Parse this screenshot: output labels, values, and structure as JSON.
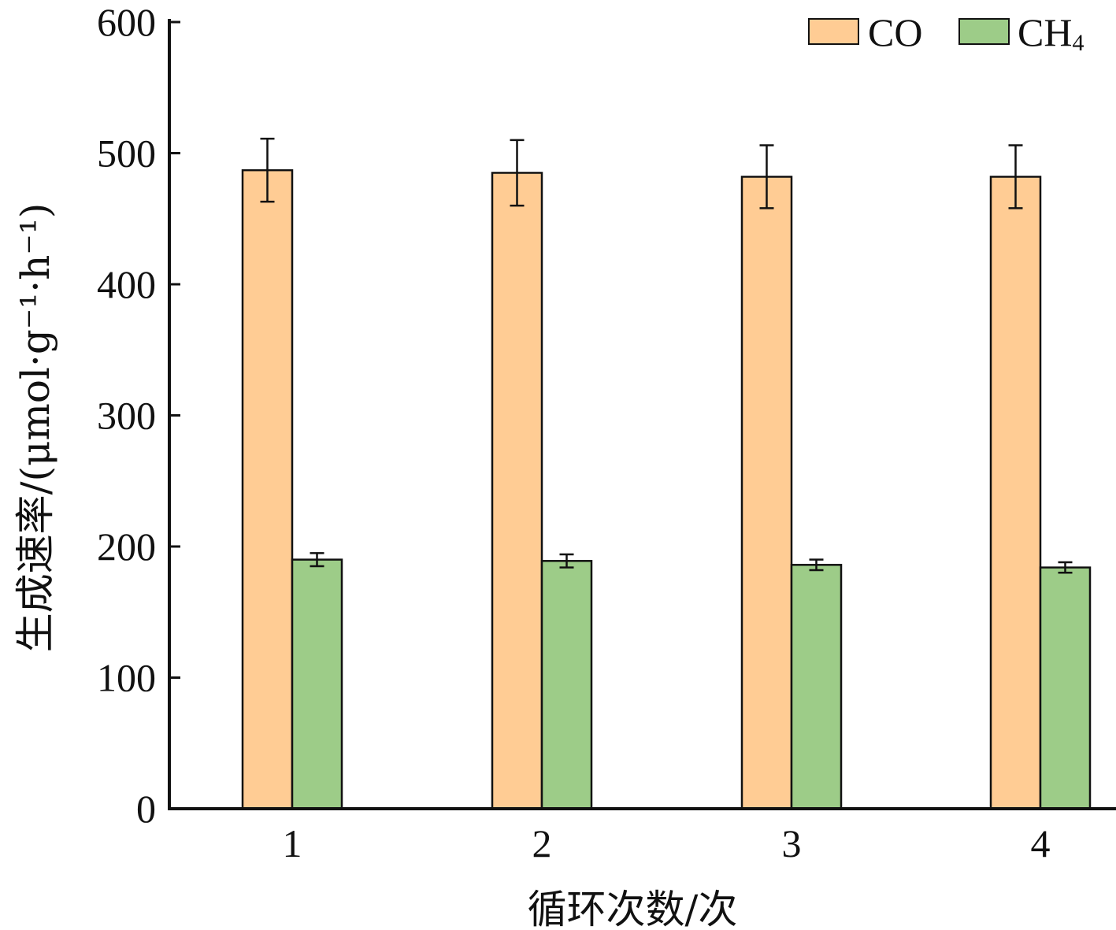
{
  "chart_data": {
    "type": "bar",
    "title": "",
    "xlabel": "循环次数/次",
    "ylabel": "生成速率/(μmol·g⁻¹·h⁻¹)",
    "categories": [
      "1",
      "2",
      "3",
      "4"
    ],
    "ylim": [
      0,
      600
    ],
    "yticks": [
      0,
      100,
      200,
      300,
      400,
      500,
      600
    ],
    "legend_position": "top-right",
    "grid": false,
    "series": [
      {
        "name": "CO",
        "label_main": "CO",
        "label_sub": "",
        "color": "#FFCC94",
        "values": [
          487,
          485,
          482,
          482
        ],
        "errors": [
          24,
          25,
          24,
          24
        ]
      },
      {
        "name": "CH4",
        "label_main": "CH",
        "label_sub": "4",
        "color": "#9DCC88",
        "values": [
          190,
          189,
          186,
          184
        ],
        "errors": [
          5,
          5,
          4,
          4
        ]
      }
    ]
  }
}
